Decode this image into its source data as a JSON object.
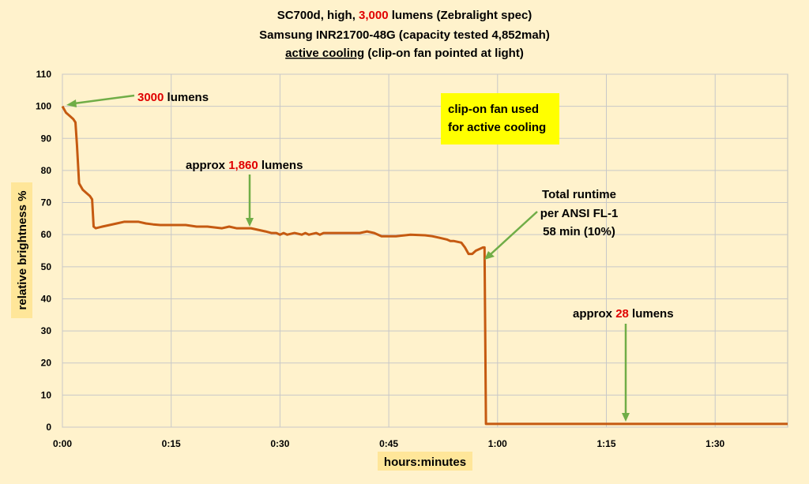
{
  "chart_data": {
    "type": "line",
    "title_lines": [
      {
        "parts": [
          "SC700d, high, ",
          "3,000",
          " lumens (Zebralight spec)"
        ]
      },
      {
        "parts": [
          "Samsung INR21700-48G (capacity tested 4,852mah)"
        ]
      },
      {
        "parts": [
          "active cooling",
          " (clip-on fan pointed at light)"
        ]
      }
    ],
    "xlabel": "hours:minutes",
    "ylabel": "relative brightness  %",
    "xlim": [
      0,
      100
    ],
    "ylim": [
      0,
      110
    ],
    "x_ticks": [
      {
        "value": 0,
        "label": "0:00"
      },
      {
        "value": 15,
        "label": "0:15"
      },
      {
        "value": 30,
        "label": "0:30"
      },
      {
        "value": 45,
        "label": "0:45"
      },
      {
        "value": 60,
        "label": "1:00"
      },
      {
        "value": 75,
        "label": "1:15"
      },
      {
        "value": 90,
        "label": "1:30"
      }
    ],
    "y_ticks": [
      0,
      10,
      20,
      30,
      40,
      50,
      60,
      70,
      80,
      90,
      100,
      110
    ],
    "grid": true,
    "series": [
      {
        "color": "#c55a11",
        "x": [
          0,
          0.5,
          1.0,
          1.5,
          1.8,
          2.0,
          2.3,
          2.8,
          3.3,
          3.8,
          4.1,
          4.3,
          4.6,
          5.5,
          6.5,
          7.5,
          8.5,
          10.5,
          11.5,
          12.5,
          13.5,
          17,
          18.5,
          20,
          22,
          23,
          24,
          25,
          26,
          27,
          28,
          28.8,
          29.5,
          30,
          30.5,
          31,
          32,
          33,
          33.5,
          34,
          35,
          35.5,
          36,
          38,
          40,
          41,
          42,
          43,
          44,
          45,
          46,
          48,
          50,
          51,
          52,
          53,
          53.5,
          54,
          55,
          55.5,
          56,
          56.5,
          57,
          58,
          58.2,
          58.4,
          60,
          70,
          80,
          90,
          100
        ],
        "y": [
          100,
          98,
          97,
          96,
          95,
          88,
          76,
          74,
          73,
          72,
          71,
          62.5,
          62,
          62.5,
          63,
          63.5,
          64,
          64,
          63.5,
          63.2,
          63,
          63,
          62.5,
          62.5,
          62,
          62.5,
          62,
          62,
          62,
          61.5,
          61,
          60.5,
          60.5,
          60,
          60.5,
          60,
          60.5,
          60,
          60.5,
          60,
          60.5,
          60,
          60.5,
          60.5,
          60.5,
          60.5,
          61,
          60.5,
          59.5,
          59.5,
          59.5,
          60,
          59.8,
          59.5,
          59,
          58.5,
          58,
          58,
          57.5,
          56,
          54,
          54,
          55,
          56,
          56,
          1,
          1,
          1,
          1,
          1,
          1
        ]
      }
    ],
    "annotations": [
      {
        "parts": [
          "3000",
          " lumens"
        ],
        "red": 0
      },
      {
        "parts": [
          "approx ",
          "1,860",
          " lumens"
        ],
        "red": 1
      },
      {
        "lines": [
          "Total runtime",
          "per ANSI FL-1",
          "58 min (10%)"
        ]
      },
      {
        "parts": [
          "approx ",
          "28",
          " lumens"
        ],
        "red": 1
      }
    ],
    "callout": [
      "clip-on fan used",
      "for active cooling"
    ]
  },
  "colors": {
    "background": "#fff2cc",
    "line": "#c55a11",
    "arrow": "#70ad47",
    "accent_red": "#e00000",
    "callout_bg": "#ffff00",
    "label_bg": "#ffe699"
  }
}
